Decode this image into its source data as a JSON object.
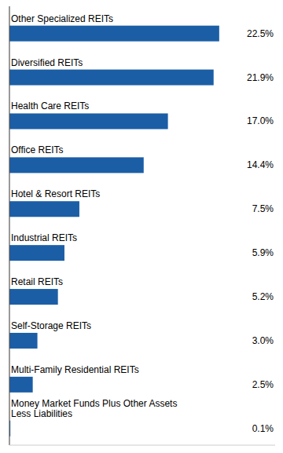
{
  "chart_data": {
    "type": "bar",
    "orientation": "horizontal",
    "categories": [
      "Other Specialized REITs",
      "Diversified REITs",
      "Health Care REITs",
      "Office REITs",
      "Hotel & Resort REITs",
      "Industrial REITs",
      "Retail REITs",
      "Self-Storage REITs",
      "Multi-Family Residential REITs",
      "Money Market Funds Plus Other Assets\nLess Liabilities"
    ],
    "values": [
      22.5,
      21.9,
      17.0,
      14.4,
      7.5,
      5.9,
      5.2,
      3.0,
      2.5,
      0.1
    ],
    "value_labels": [
      "22.5%",
      "21.9%",
      "17.0%",
      "14.4%",
      "7.5%",
      "5.9%",
      "5.2%",
      "3.0%",
      "2.5%",
      "0.1%"
    ],
    "color": "#1B5EA6",
    "xlim": [
      0,
      28.5
    ],
    "data_labels": true,
    "tick_labels": "y",
    "grid": false
  }
}
